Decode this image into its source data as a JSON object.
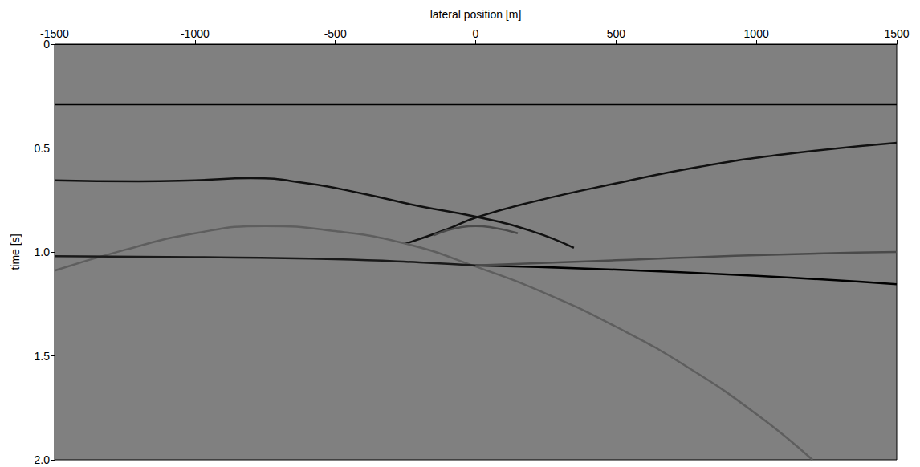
{
  "chart_data": {
    "type": "line",
    "xlabel": "lateral position [m]",
    "ylabel": "time [s]",
    "xlim": [
      -1500,
      1500
    ],
    "xticks": [
      -1500,
      -1000,
      -500,
      0,
      500,
      1000,
      1500
    ],
    "ylim": [
      0,
      2
    ],
    "yticks": [
      0,
      {
        "value": 0.5,
        "label": "0.5"
      },
      {
        "value": 1,
        "label": "1.0"
      },
      {
        "value": 1.5,
        "label": "1.5"
      },
      {
        "value": 2,
        "label": "2.0"
      }
    ],
    "grid": false,
    "series": [
      {
        "color": "#000000",
        "x": [
          -1500,
          1500
        ],
        "values": [
          0.29,
          0.29
        ]
      },
      {
        "color": "#111111",
        "x": [
          -1500,
          -1200,
          -1000,
          -800,
          -600,
          -400,
          -200,
          0,
          200,
          350
        ],
        "values": [
          0.655,
          0.66,
          0.655,
          0.645,
          0.67,
          0.72,
          0.78,
          0.83,
          0.9,
          0.98
        ]
      },
      {
        "color": "#111111",
        "x": [
          -250,
          -100,
          0,
          200,
          500,
          800,
          1100,
          1500
        ],
        "values": [
          0.96,
          0.89,
          0.835,
          0.76,
          0.67,
          0.59,
          0.53,
          0.475
        ]
      },
      {
        "color": "#4a4a4a",
        "x": [
          -150,
          -50,
          0,
          50,
          150
        ],
        "values": [
          0.92,
          0.88,
          0.875,
          0.88,
          0.91
        ]
      },
      {
        "color": "#5e5e5e",
        "x": [
          -1500,
          -1250,
          -1000,
          -750,
          -500,
          -250,
          0,
          250,
          500,
          750,
          1000,
          1200
        ],
        "values": [
          1.09,
          0.99,
          0.91,
          0.875,
          0.9,
          0.96,
          1.07,
          1.2,
          1.36,
          1.55,
          1.78,
          2.0
        ]
      },
      {
        "color": "#1a1a1a",
        "x": [
          -1500,
          -1000,
          -500,
          -200,
          0
        ],
        "values": [
          1.02,
          1.025,
          1.035,
          1.05,
          1.065
        ]
      },
      {
        "color": "#000000",
        "x": [
          0,
          500,
          1000,
          1500
        ],
        "values": [
          1.065,
          1.085,
          1.115,
          1.155
        ]
      },
      {
        "color": "#4a4a4a",
        "x": [
          0,
          500,
          1000,
          1500
        ],
        "values": [
          1.065,
          1.04,
          1.015,
          1.0
        ]
      }
    ]
  }
}
